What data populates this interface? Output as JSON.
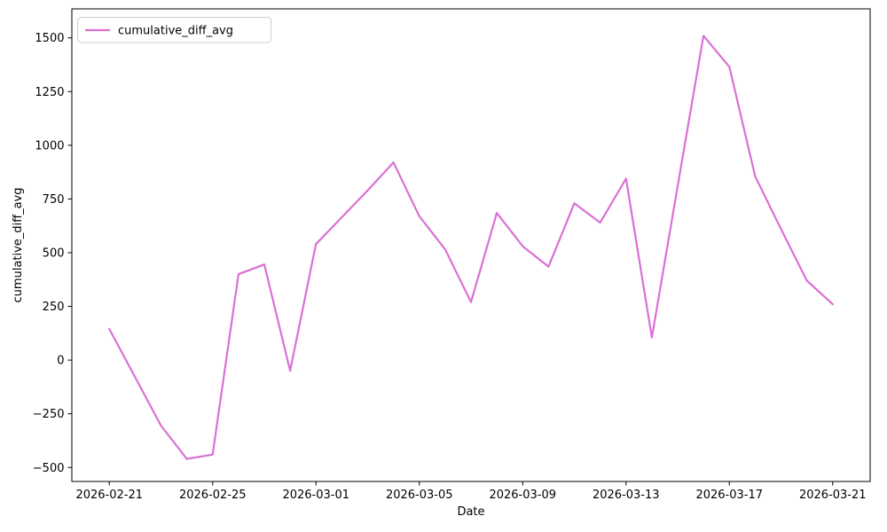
{
  "figure": {
    "background": "#ffffff",
    "text_color": "#000000"
  },
  "chart_data": {
    "type": "line",
    "title": "",
    "xlabel": "Date",
    "ylabel": "cumulative_diff_avg",
    "grid": false,
    "legend": {
      "position": "upper-left",
      "entries": [
        "cumulative_diff_avg"
      ]
    },
    "x": [
      "2026-02-21",
      "2026-02-22",
      "2026-02-23",
      "2026-02-24",
      "2026-02-25",
      "2026-02-26",
      "2026-02-27",
      "2026-02-28",
      "2026-03-01",
      "2026-03-02",
      "2026-03-03",
      "2026-03-04",
      "2026-03-05",
      "2026-03-06",
      "2026-03-07",
      "2026-03-08",
      "2026-03-09",
      "2026-03-10",
      "2026-03-11",
      "2026-03-12",
      "2026-03-13",
      "2026-03-14",
      "2026-03-15",
      "2026-03-16",
      "2026-03-17",
      "2026-03-18",
      "2026-03-19",
      "2026-03-20",
      "2026-03-21"
    ],
    "series": [
      {
        "name": "cumulative_diff_avg",
        "color": "#DA70D6",
        "values": [
          145,
          -80,
          -305,
          -460,
          -440,
          400,
          445,
          -50,
          540,
          665,
          790,
          920,
          670,
          515,
          270,
          685,
          530,
          435,
          730,
          640,
          845,
          105,
          810,
          1510,
          1365,
          855,
          610,
          370,
          260
        ]
      }
    ],
    "ylim": [
      -565,
      1635
    ],
    "x_range_days": [
      -1.45,
      29.45
    ],
    "yticks": [
      -500,
      -250,
      0,
      250,
      500,
      750,
      1000,
      1250,
      1500
    ],
    "xticks": [
      "2026-02-21",
      "2026-02-25",
      "2026-03-01",
      "2026-03-05",
      "2026-03-09",
      "2026-03-13",
      "2026-03-17",
      "2026-03-21"
    ]
  }
}
